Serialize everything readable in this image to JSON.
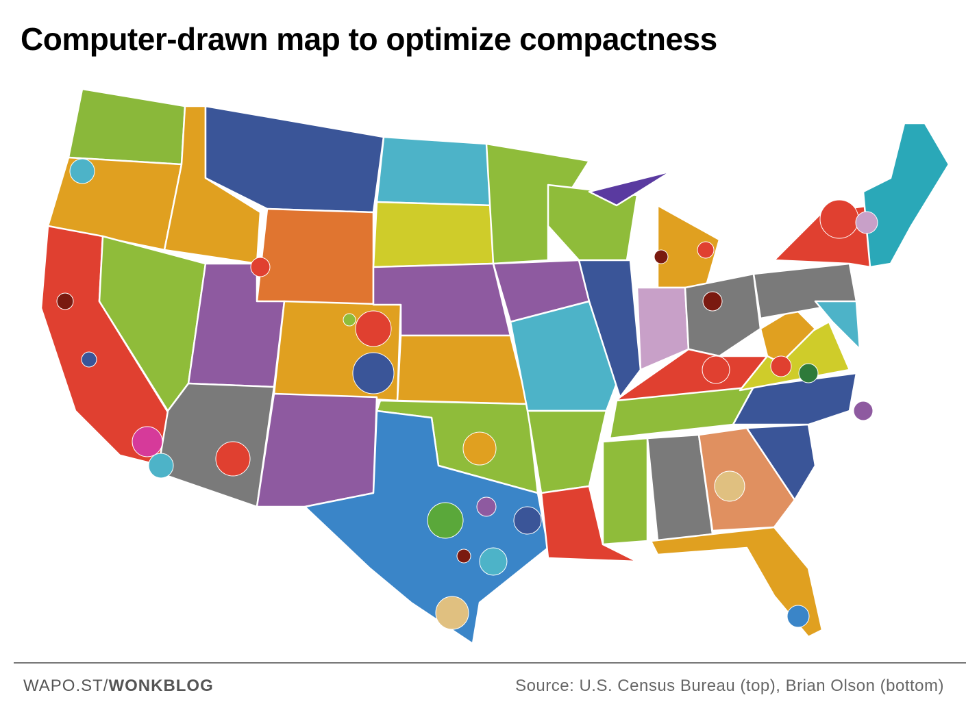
{
  "header": {
    "title": "Computer-drawn map to optimize compactness"
  },
  "footer": {
    "credit_site": "WAPO.ST/",
    "credit_blog": "WONKBLOG",
    "source": "Source: U.S. Census Bureau (top), Brian Olson (bottom)"
  }
}
